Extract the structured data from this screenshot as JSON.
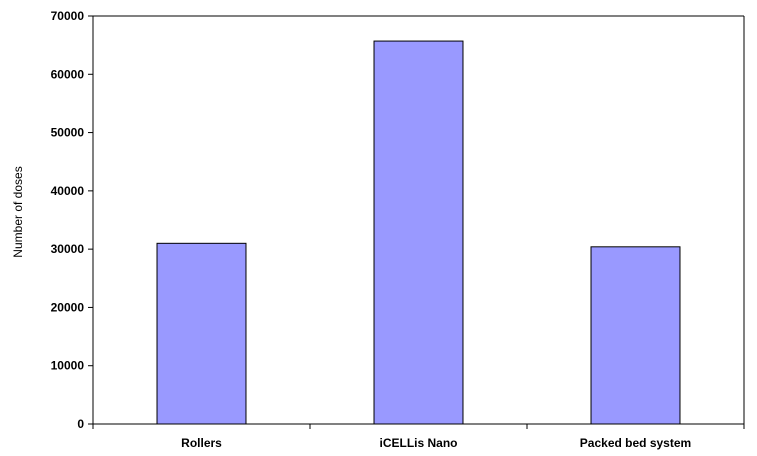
{
  "chart_data": {
    "type": "bar",
    "categories": [
      "Rollers",
      "iCELLis Nano",
      "Packed bed system"
    ],
    "values": [
      31000,
      65700,
      30400
    ],
    "title": "",
    "xlabel": "",
    "ylabel": "Number of doses",
    "ylim": [
      0,
      70000
    ],
    "yticks": [
      0,
      10000,
      20000,
      30000,
      40000,
      50000,
      60000,
      70000
    ],
    "bar_color": "#9999ff",
    "bar_edge_color": "#000000",
    "grid": false,
    "legend": "none"
  }
}
